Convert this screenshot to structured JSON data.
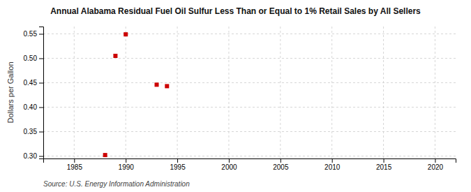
{
  "chart_data": {
    "type": "scatter",
    "title": "Annual Alabama Residual Fuel Oil Sulfur Less Than or Equal to 1% Retail Sales by All Sellers",
    "y_label": "Dollars per Gallon",
    "annotations": [
      "Source: U.S. Energy Information Administration"
    ],
    "x": [
      1988,
      1989,
      1990,
      1993,
      1994
    ],
    "values": [
      0.302,
      0.505,
      0.549,
      0.446,
      0.443
    ],
    "color": "#cc0000",
    "marker": "square",
    "xlim": [
      1982,
      2022
    ],
    "ylim": [
      0.295,
      0.565
    ],
    "xticks": [
      1985,
      1990,
      1995,
      2000,
      2005,
      2010,
      2015,
      2020
    ],
    "yticks": [
      {
        "value": 0.3,
        "label": "0.30"
      },
      0.35,
      {
        "value": 0.4,
        "label": "0.40"
      },
      0.45,
      {
        "value": 0.5,
        "label": "0.50"
      },
      0.55
    ],
    "grid": true
  }
}
